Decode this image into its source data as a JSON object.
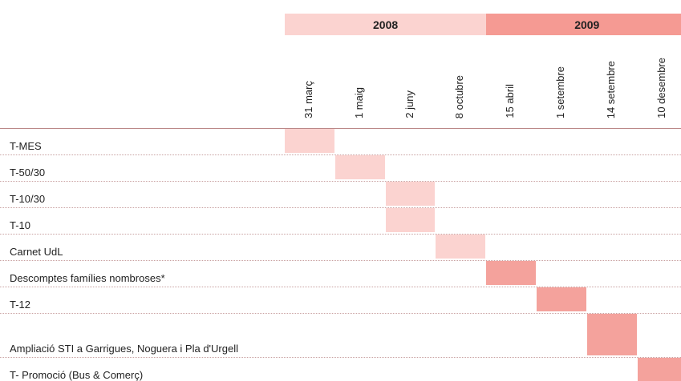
{
  "years": [
    {
      "label": "2008",
      "color": "#fbd3d0",
      "dates": [
        "31 març",
        "1 maig",
        "2 juny",
        "8 octubre"
      ]
    },
    {
      "label": "2009",
      "color": "#f59a93",
      "dates": [
        "15 abril",
        "1 setembre",
        "14 setembre",
        "10 desembre"
      ]
    }
  ],
  "cell_colors": [
    "#fbd3d0",
    "#f4a29c"
  ],
  "rows": [
    {
      "label": "T-MES",
      "column": 0
    },
    {
      "label": "T-50/30",
      "column": 1
    },
    {
      "label": "T-10/30",
      "column": 2
    },
    {
      "label": "T-10",
      "column": 2
    },
    {
      "label": "Carnet UdL",
      "column": 3
    },
    {
      "label": "Descomptes famílies nombroses*",
      "column": 4
    },
    {
      "label": "T-12",
      "column": 5
    },
    {
      "label": "Ampliació STI a Garrigues, Noguera i Pla d'Urgell",
      "column": 6
    },
    {
      "label": "T- Promoció (Bus & Comerç)",
      "column": 7
    }
  ]
}
